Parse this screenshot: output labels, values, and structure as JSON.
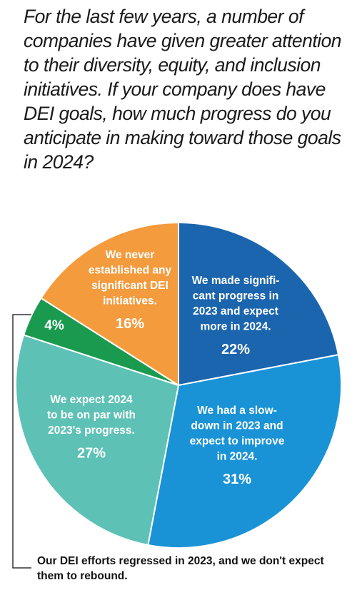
{
  "question": "For the last few years, a number of companies have given greater attention to their diversity, equity, and inclusion initiatives. If your company does have DEI goals, how much progress do you anticipate in making toward those goals in 2024?",
  "chart_data": {
    "type": "pie",
    "slices": [
      {
        "label": [
          "We made signifi-",
          "cant progress in",
          "2023 and expect",
          "more in 2024."
        ],
        "value": 22,
        "value_label": "22%",
        "color": "#1b65ae"
      },
      {
        "label": [
          "We had a slow-",
          "down in 2023 and",
          "expect to improve",
          "in 2024."
        ],
        "value": 31,
        "value_label": "31%",
        "color": "#1a93d6"
      },
      {
        "label": [
          "We expect 2024",
          "to be on par with",
          "2023's progress."
        ],
        "value": 27,
        "value_label": "27%",
        "color": "#5ec1b6"
      },
      {
        "label": [],
        "value": 4,
        "value_label": "4%",
        "color": "#1a9a4f"
      },
      {
        "label": [
          "We never",
          "established any",
          "significant DEI",
          "initiatives."
        ],
        "value": 16,
        "value_label": "16%",
        "color": "#f49b3e"
      }
    ]
  },
  "footnote": "Our DEI efforts regressed in 2023, and we don't expect them to rebound.",
  "colors": {
    "leader_line": "#333333",
    "slice_border": "#ffffff"
  }
}
